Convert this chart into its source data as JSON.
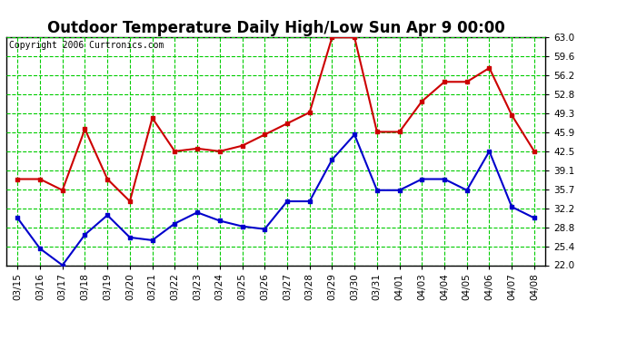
{
  "title": "Outdoor Temperature Daily High/Low Sun Apr 9 00:00",
  "copyright_text": "Copyright 2006 Curtronics.com",
  "x_labels": [
    "03/15",
    "03/16",
    "03/17",
    "03/18",
    "03/19",
    "03/20",
    "03/21",
    "03/22",
    "03/23",
    "03/24",
    "03/25",
    "03/26",
    "03/27",
    "03/28",
    "03/29",
    "03/30",
    "03/31",
    "04/01",
    "04/03",
    "04/04",
    "04/05",
    "04/06",
    "04/07",
    "04/08"
  ],
  "high_temps": [
    37.5,
    37.5,
    35.5,
    46.5,
    37.5,
    33.5,
    48.5,
    42.5,
    43.0,
    42.5,
    43.5,
    45.5,
    47.5,
    49.5,
    63.0,
    63.0,
    46.0,
    46.0,
    51.5,
    55.0,
    55.0,
    57.5,
    49.0,
    42.5
  ],
  "low_temps": [
    30.5,
    25.0,
    22.0,
    27.5,
    31.0,
    27.0,
    26.5,
    29.5,
    31.5,
    30.0,
    29.0,
    28.5,
    33.5,
    33.5,
    41.0,
    45.5,
    35.5,
    35.5,
    37.5,
    37.5,
    35.5,
    42.5,
    32.5,
    30.5
  ],
  "high_color": "#cc0000",
  "low_color": "#0000cc",
  "bg_color": "#ffffff",
  "plot_bg_color": "#ffffff",
  "grid_color": "#00cc00",
  "ylim_min": 22.0,
  "ylim_max": 63.0,
  "yticks": [
    22.0,
    25.4,
    28.8,
    32.2,
    35.7,
    39.1,
    42.5,
    45.9,
    49.3,
    52.8,
    56.2,
    59.6,
    63.0
  ],
  "title_fontsize": 12,
  "copyright_fontsize": 7,
  "tick_fontsize": 7.5
}
